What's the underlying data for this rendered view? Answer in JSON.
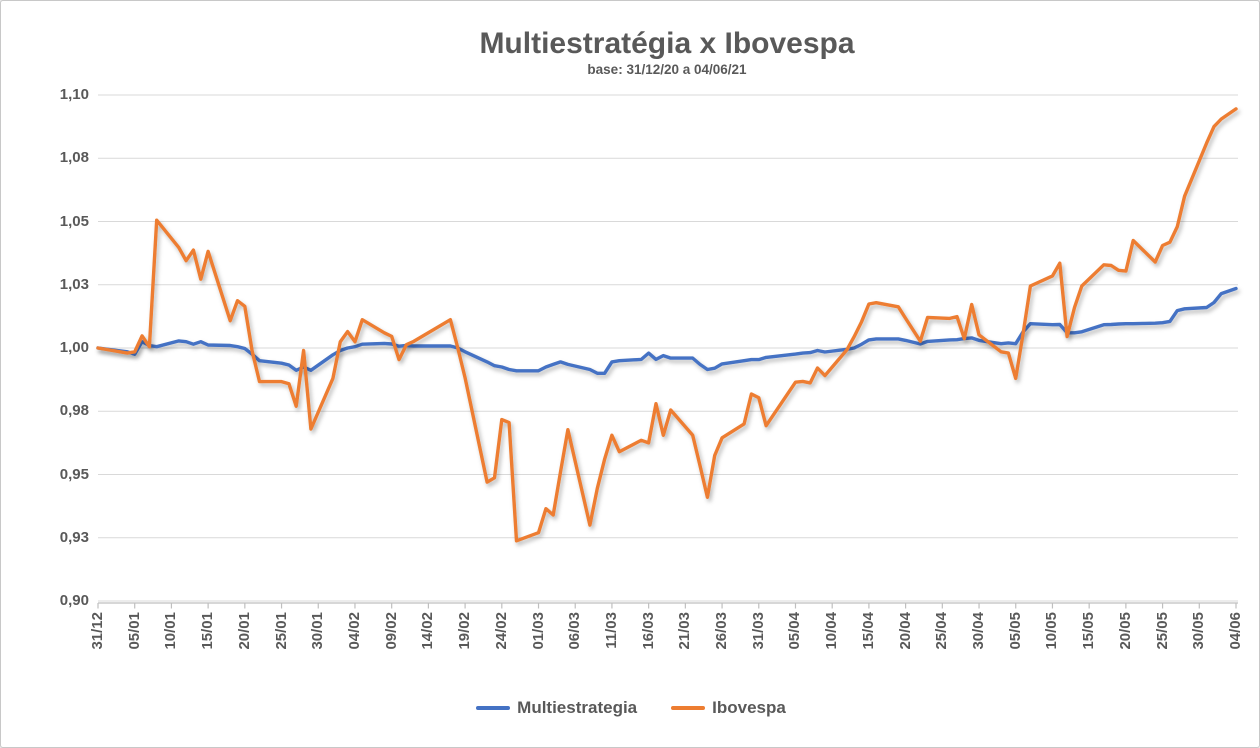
{
  "chart": {
    "title": "Multiestratégia x Ibovespa",
    "subtitle": "base: 31/12/20 a 04/06/21",
    "text_color": "#595959",
    "gridline_color": "#D9D9D9",
    "axis_line_color": "#BFBFBF",
    "background": "#FFFFFF"
  },
  "chart_data": {
    "type": "line",
    "title": "Multiestratégia x Ibovespa",
    "subtitle": "base: 31/12/20 a 04/06/21",
    "xlabel": "",
    "ylabel": "",
    "ylim": [
      0.9,
      1.1
    ],
    "grid": true,
    "legend_position": "bottom",
    "y_ticks": [
      "1,10",
      "1,08",
      "1,05",
      "1,03",
      "1,00",
      "0,98",
      "0,95",
      "0,93",
      "0,90"
    ],
    "y_tick_values": [
      1.1,
      1.075,
      1.05,
      1.025,
      1.0,
      0.975,
      0.95,
      0.925,
      0.9
    ],
    "x_tick_labels": [
      "31/12",
      "05/01",
      "10/01",
      "15/01",
      "20/01",
      "25/01",
      "30/01",
      "04/02",
      "09/02",
      "14/02",
      "19/02",
      "24/02",
      "01/03",
      "06/03",
      "11/03",
      "16/03",
      "21/03",
      "26/03",
      "31/03",
      "05/04",
      "10/04",
      "15/04",
      "20/04",
      "25/04",
      "30/04",
      "05/05",
      "10/05",
      "15/05",
      "20/05",
      "25/05",
      "30/05",
      "04/06"
    ],
    "x_tick_days": [
      0,
      5,
      10,
      15,
      20,
      25,
      30,
      35,
      40,
      45,
      50,
      55,
      60,
      65,
      70,
      75,
      80,
      85,
      90,
      95,
      100,
      105,
      110,
      115,
      120,
      125,
      130,
      135,
      140,
      145,
      150,
      155
    ],
    "x_total_days": 155,
    "x_dates": [
      "31/12",
      "04/01",
      "05/01",
      "06/01",
      "07/01",
      "08/01",
      "11/01",
      "12/01",
      "13/01",
      "14/01",
      "15/01",
      "18/01",
      "19/01",
      "20/01",
      "21/01",
      "22/01",
      "25/01",
      "26/01",
      "27/01",
      "28/01",
      "29/01",
      "01/02",
      "02/02",
      "03/02",
      "04/02",
      "05/02",
      "08/02",
      "09/02",
      "10/02",
      "11/02",
      "12/02",
      "17/02",
      "18/02",
      "19/02",
      "22/02",
      "23/02",
      "24/02",
      "25/02",
      "26/02",
      "01/03",
      "02/03",
      "03/03",
      "04/03",
      "05/03",
      "08/03",
      "09/03",
      "10/03",
      "11/03",
      "12/03",
      "15/03",
      "16/03",
      "17/03",
      "18/03",
      "19/03",
      "22/03",
      "23/03",
      "24/03",
      "25/03",
      "26/03",
      "29/03",
      "30/03",
      "31/03",
      "01/04",
      "05/04",
      "06/04",
      "07/04",
      "08/04",
      "09/04",
      "12/04",
      "13/04",
      "14/04",
      "15/04",
      "16/04",
      "19/04",
      "20/04",
      "22/04",
      "23/04",
      "26/04",
      "27/04",
      "28/04",
      "29/04",
      "30/04",
      "03/05",
      "04/05",
      "05/05",
      "06/05",
      "07/05",
      "10/05",
      "11/05",
      "12/05",
      "13/05",
      "14/05",
      "17/05",
      "18/05",
      "19/05",
      "20/05",
      "21/05",
      "24/05",
      "25/05",
      "26/05",
      "27/05",
      "28/05",
      "31/05",
      "01/06",
      "02/06",
      "04/06"
    ],
    "day_offsets": [
      0,
      4,
      5,
      6,
      7,
      8,
      11,
      12,
      13,
      14,
      15,
      18,
      19,
      20,
      21,
      22,
      25,
      26,
      27,
      28,
      29,
      32,
      33,
      34,
      35,
      36,
      39,
      40,
      41,
      42,
      43,
      48,
      49,
      50,
      53,
      54,
      55,
      56,
      57,
      60,
      61,
      62,
      63,
      64,
      67,
      68,
      69,
      70,
      71,
      74,
      75,
      76,
      77,
      78,
      81,
      82,
      83,
      84,
      85,
      88,
      89,
      90,
      91,
      95,
      96,
      97,
      98,
      99,
      102,
      103,
      104,
      105,
      106,
      109,
      110,
      112,
      113,
      116,
      117,
      118,
      119,
      120,
      123,
      124,
      125,
      126,
      127,
      130,
      131,
      132,
      133,
      134,
      137,
      138,
      139,
      140,
      141,
      144,
      145,
      146,
      147,
      148,
      151,
      152,
      153,
      155
    ],
    "series": [
      {
        "name": "Multiestrategia",
        "color": "#4472C4",
        "values": [
          1.0,
          0.9985,
          0.9975,
          1.0025,
          1.001,
          1.0005,
          1.0028,
          1.0025,
          1.0015,
          1.0025,
          1.0012,
          1.001,
          1.0005,
          0.9998,
          0.9975,
          0.995,
          0.994,
          0.9933,
          0.9912,
          0.9925,
          0.9912,
          0.9973,
          0.999,
          1.0,
          1.0005,
          1.0015,
          1.0018,
          1.0016,
          1.0007,
          1.001,
          1.0008,
          1.0008,
          1.0,
          0.9985,
          0.9945,
          0.993,
          0.9925,
          0.9915,
          0.991,
          0.991,
          0.9925,
          0.9935,
          0.9945,
          0.9935,
          0.9915,
          0.99,
          0.99,
          0.9945,
          0.995,
          0.9955,
          0.998,
          0.9955,
          0.997,
          0.996,
          0.996,
          0.9935,
          0.9915,
          0.992,
          0.9937,
          0.995,
          0.9954,
          0.9954,
          0.9963,
          0.9976,
          0.998,
          0.9982,
          0.999,
          0.9984,
          0.9995,
          1.0,
          1.0015,
          1.0032,
          1.0036,
          1.0036,
          1.003,
          1.0016,
          1.0026,
          1.0032,
          1.0033,
          1.0037,
          1.004,
          1.003,
          1.0017,
          1.002,
          1.0017,
          1.0064,
          1.0096,
          1.0092,
          1.0093,
          1.006,
          1.006,
          1.0064,
          1.0092,
          1.0093,
          1.0095,
          1.0096,
          1.0096,
          1.0098,
          1.01,
          1.0105,
          1.0148,
          1.0155,
          1.016,
          1.018,
          1.0215,
          1.0235
        ]
      },
      {
        "name": "Ibovespa",
        "color": "#ED7D31",
        "values": [
          1.0,
          0.998,
          0.9985,
          1.0048,
          1.0005,
          1.0505,
          1.0397,
          1.0345,
          1.0387,
          1.0272,
          1.0382,
          1.0108,
          1.0187,
          1.0165,
          0.9987,
          0.9867,
          0.9867,
          0.9859,
          0.977,
          0.999,
          0.968,
          0.988,
          1.0025,
          1.0065,
          1.0025,
          1.0112,
          1.006,
          1.0046,
          0.9954,
          1.0013,
          1.0026,
          1.0112,
          1.0,
          0.9882,
          0.947,
          0.9487,
          0.9717,
          0.9705,
          0.9238,
          0.927,
          0.9365,
          0.934,
          0.951,
          0.9677,
          0.93,
          0.9445,
          0.956,
          0.9655,
          0.959,
          0.9635,
          0.9625,
          0.978,
          0.9655,
          0.9755,
          0.9655,
          0.9535,
          0.941,
          0.9575,
          0.9645,
          0.97,
          0.9818,
          0.9803,
          0.9693,
          0.9865,
          0.9868,
          0.9862,
          0.9921,
          0.9891,
          0.9993,
          1.0045,
          1.0104,
          1.0174,
          1.0179,
          1.0163,
          1.0117,
          1.0027,
          1.0121,
          1.0117,
          1.0124,
          1.0037,
          1.0172,
          1.0052,
          0.9985,
          0.998,
          0.988,
          1.0057,
          1.0245,
          1.0285,
          1.0335,
          1.0045,
          1.016,
          1.0245,
          1.0329,
          1.0326,
          1.0307,
          1.0304,
          1.0425,
          1.034,
          1.0405,
          1.0418,
          1.048,
          1.06,
          1.081,
          1.0875,
          1.0905,
          1.0945
        ]
      }
    ]
  }
}
